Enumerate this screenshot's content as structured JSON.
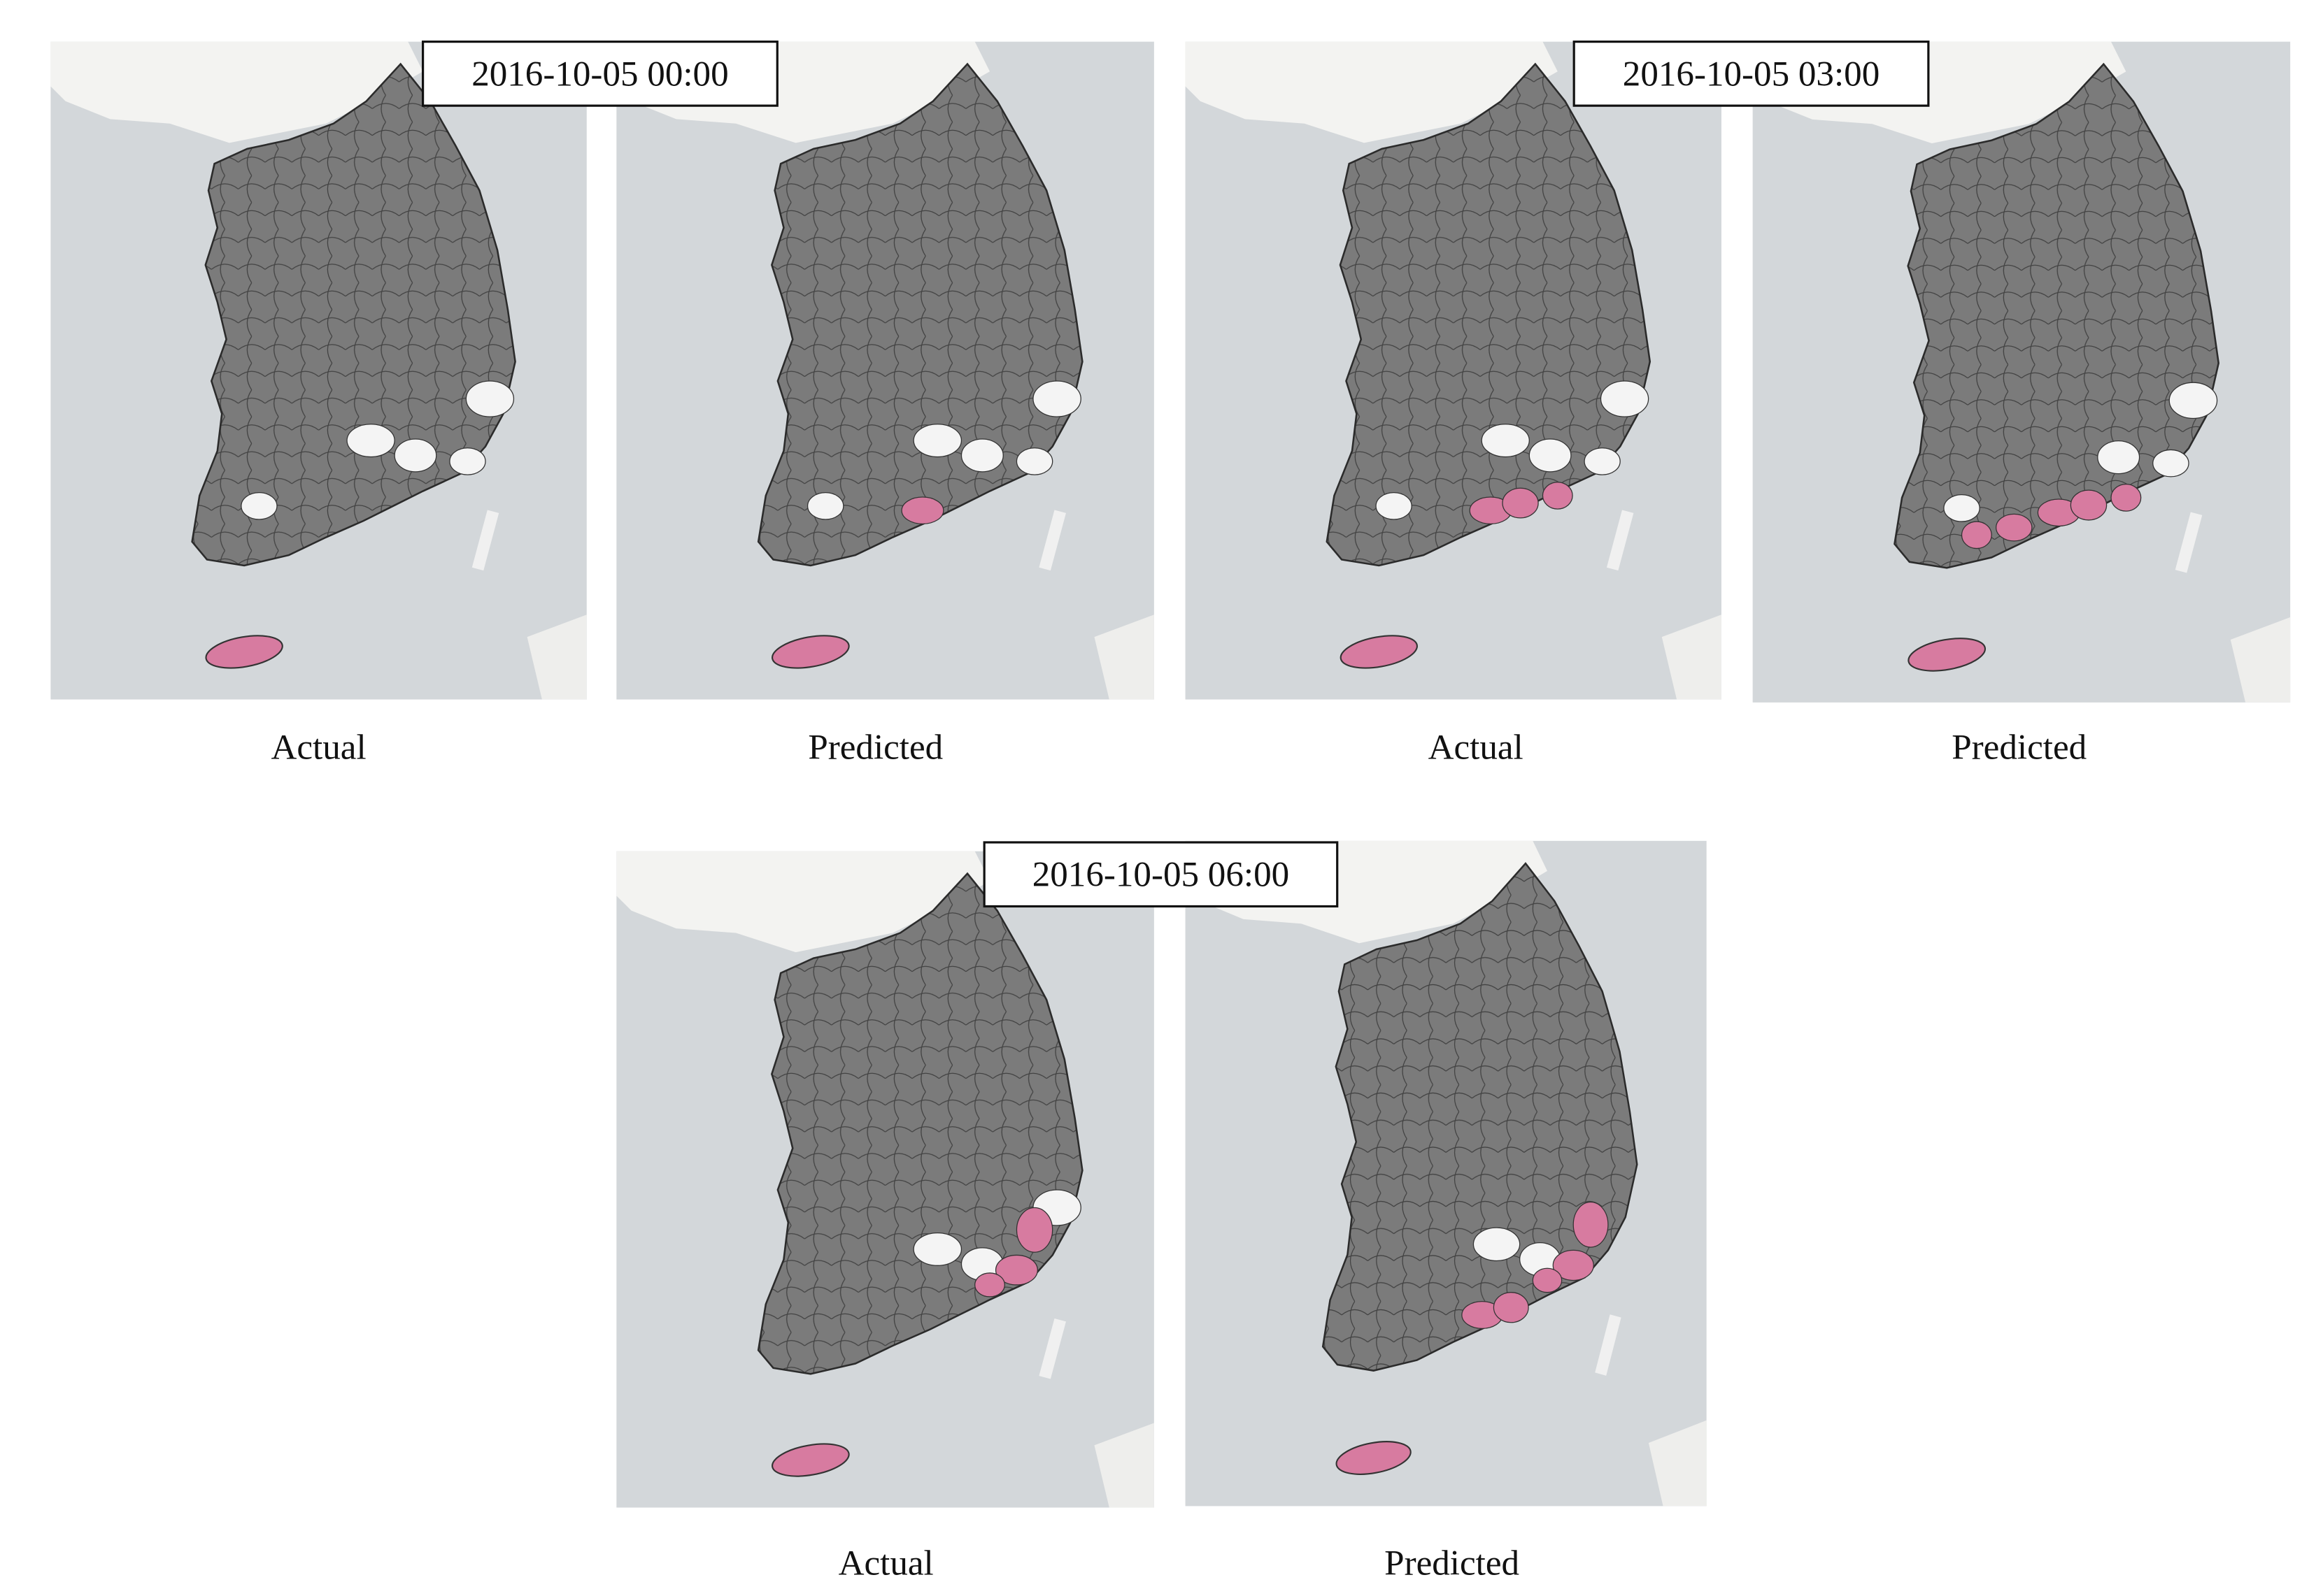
{
  "panels": [
    {
      "timestamp": "2016-10-05 00:00",
      "maps": [
        {
          "caption": "Actual"
        },
        {
          "caption": "Predicted"
        }
      ]
    },
    {
      "timestamp": "2016-10-05 03:00",
      "maps": [
        {
          "caption": "Actual"
        },
        {
          "caption": "Predicted"
        }
      ]
    },
    {
      "timestamp": "2016-10-05 06:00",
      "maps": [
        {
          "caption": "Actual"
        },
        {
          "caption": "Predicted"
        }
      ]
    }
  ]
}
